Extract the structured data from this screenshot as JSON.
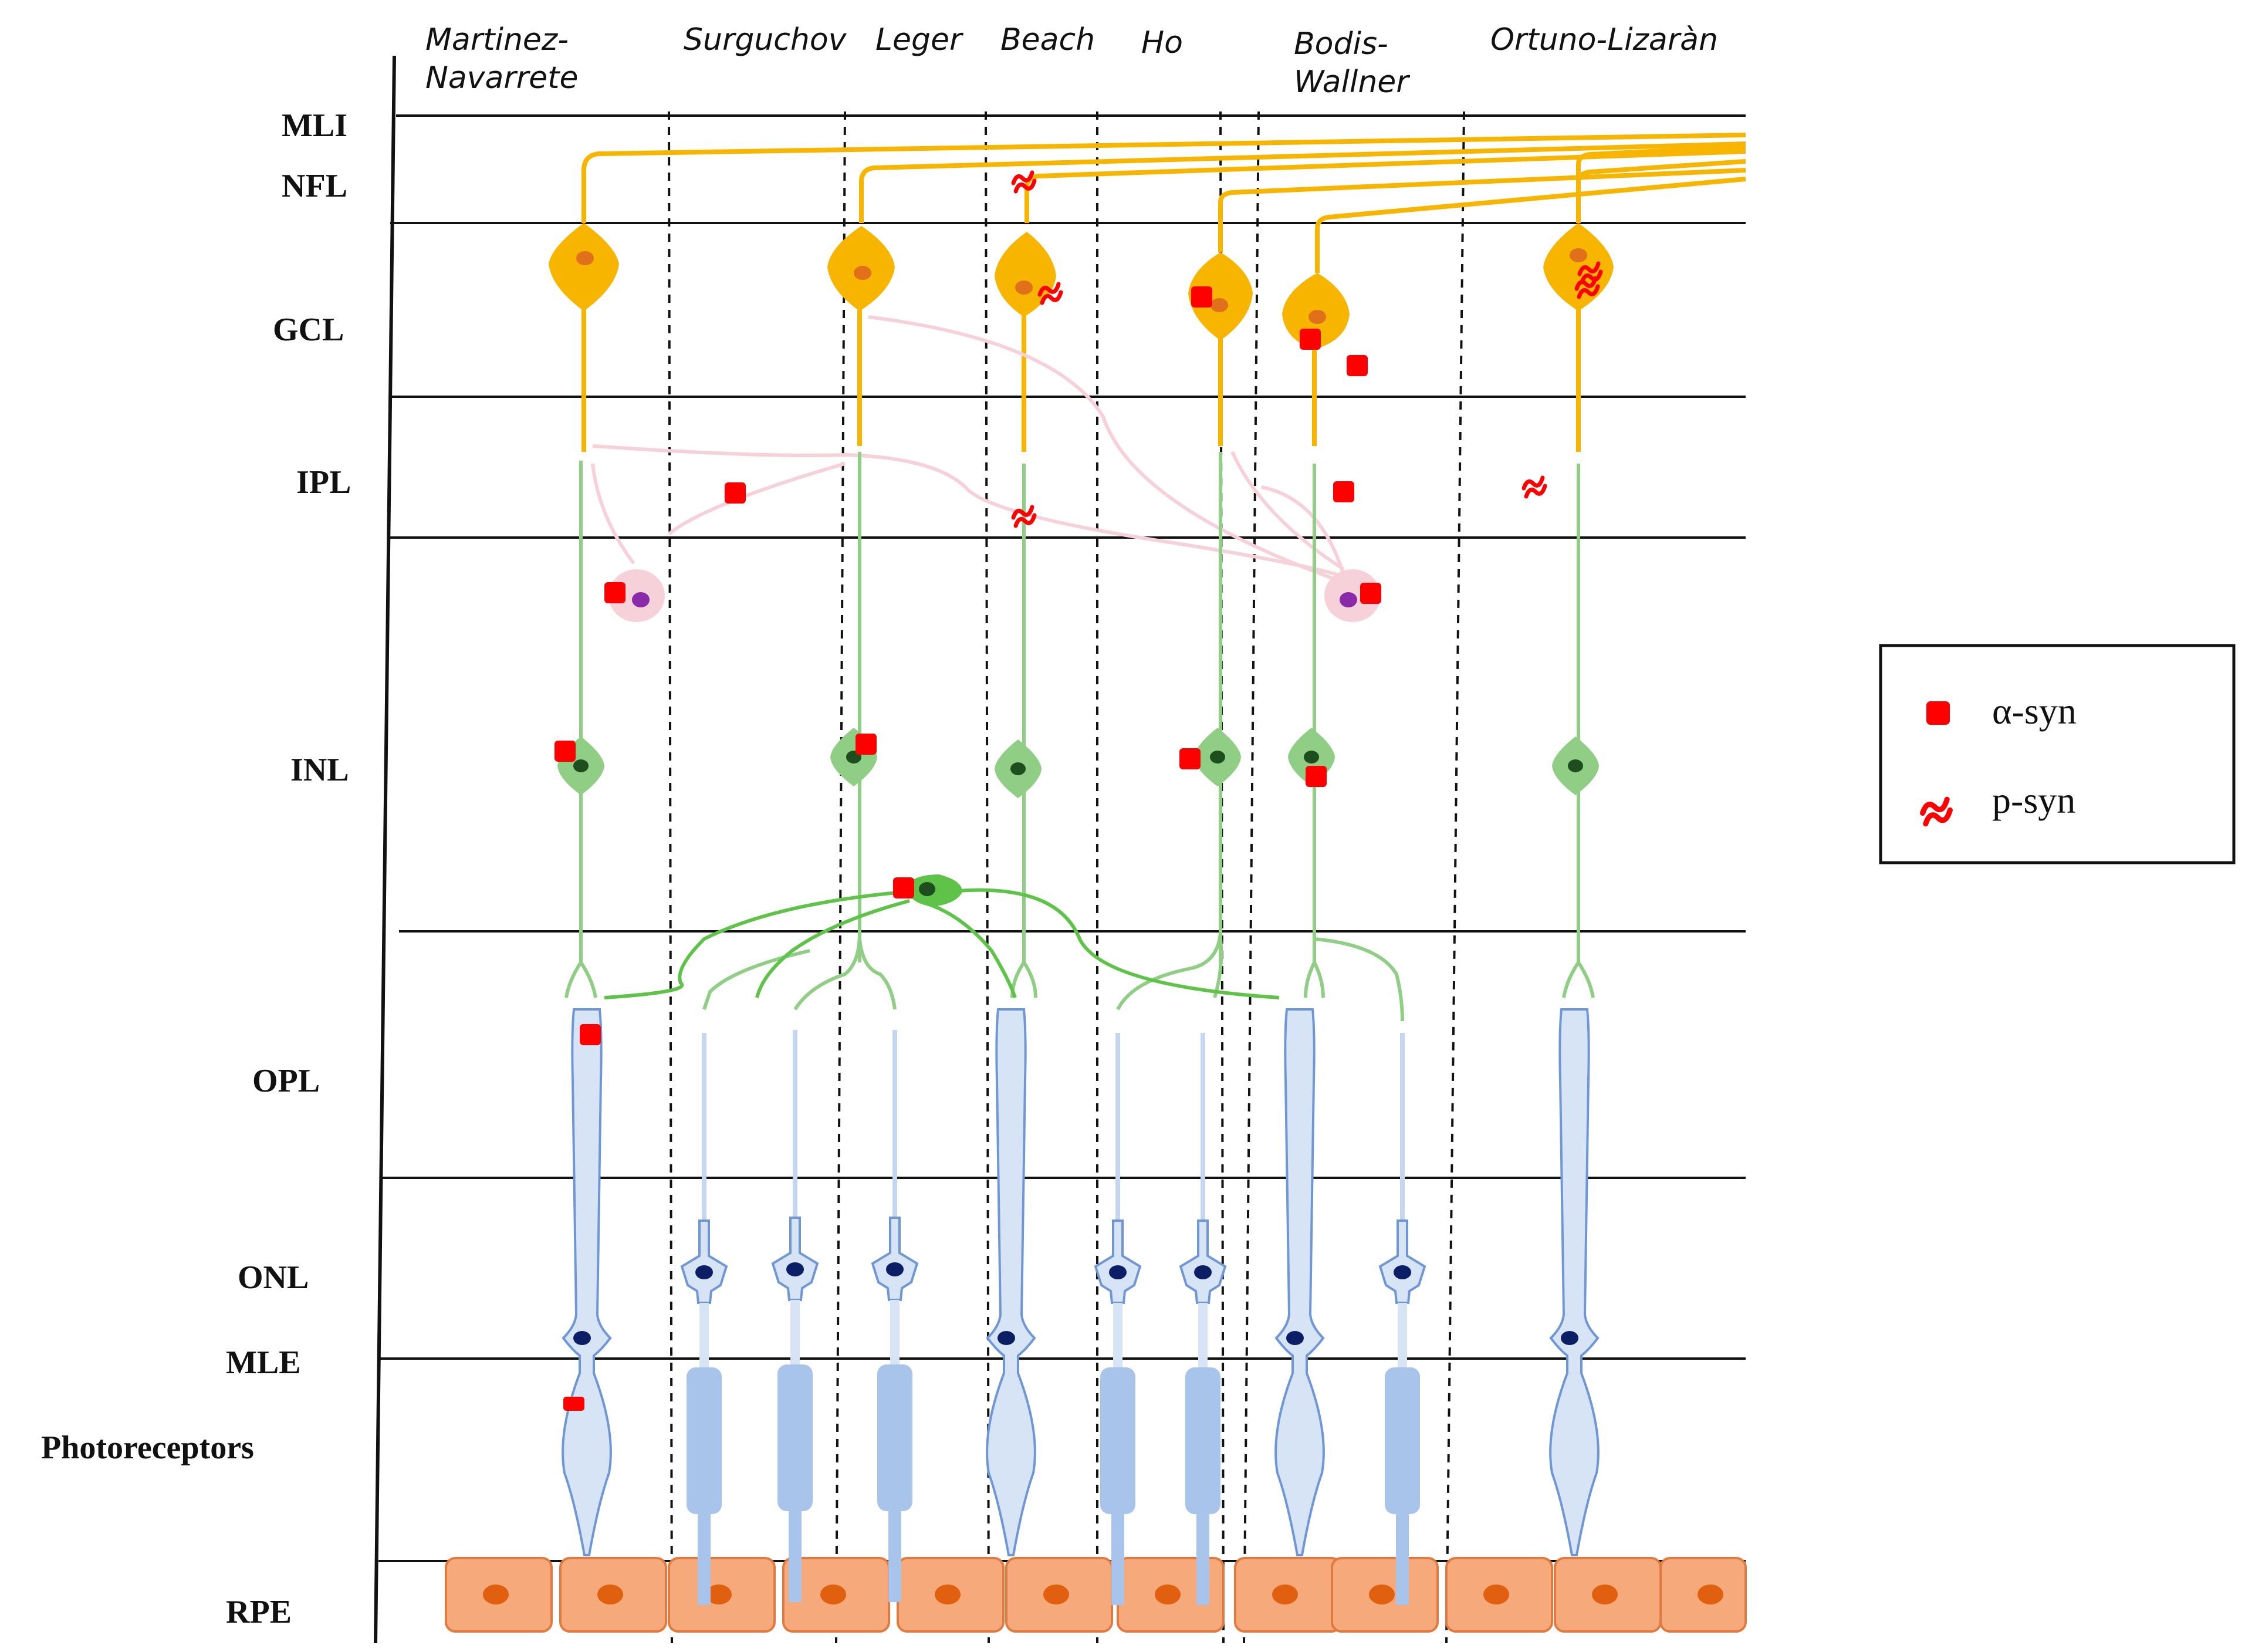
{
  "layers": [
    "MLI",
    "NFL",
    "GCL",
    "IPL",
    "INL",
    "OPL",
    "ONL",
    "MLE",
    "Photoreceptors",
    "RPE"
  ],
  "authors": [
    {
      "line1": "Martinez-",
      "line2": "Navarrete"
    },
    {
      "line1": "Surguchov",
      "line2": ""
    },
    {
      "line1": "Leger",
      "line2": ""
    },
    {
      "line1": "Beach",
      "line2": ""
    },
    {
      "line1": "Ho",
      "line2": ""
    },
    {
      "line1": "Bodis-",
      "line2": "Wallner"
    },
    {
      "line1": "Ortuno-Lizaràn",
      "line2": ""
    }
  ],
  "legend": {
    "alpha": "α-syn",
    "phospho": "p-syn"
  },
  "colors": {
    "ganglion": "#f7b500",
    "ganglion_nucleus": "#e0701a",
    "bipolar": "#8fce84",
    "bipolar_nucleus": "#1e4d1e",
    "horizontal": "#5fc34a",
    "amacrine": "#f6d1d9",
    "amacrine_nucleus": "#8a2aa8",
    "photoreceptor_fill": "#d6e4f6",
    "photoreceptor_line": "#6f97d6",
    "cone_outer": "#a9c4ea",
    "rpe_fill": "#f6a97a",
    "rpe_line": "#e07a40",
    "rpe_nucleus": "#e0600f",
    "marker": "#ff0000"
  }
}
